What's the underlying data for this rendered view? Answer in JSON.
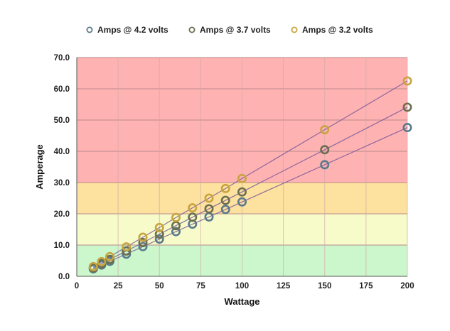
{
  "chart_data": {
    "type": "scatter",
    "title": "",
    "xlabel": "Wattage",
    "ylabel": "Amperage",
    "xlim": [
      0,
      200
    ],
    "ylim": [
      0,
      70
    ],
    "x_ticks": [
      "0",
      "25",
      "50",
      "75",
      "100",
      "125",
      "150",
      "175",
      "200"
    ],
    "y_ticks": [
      "0.0",
      "10.0",
      "20.0",
      "30.0",
      "40.0",
      "50.0",
      "60.0",
      "70.0"
    ],
    "grid": true,
    "legend_position": "top-center",
    "bands": [
      {
        "from": 0,
        "to": 10,
        "color": "#ccf7cc"
      },
      {
        "from": 10,
        "to": 20,
        "color": "#f7fbc9"
      },
      {
        "from": 20,
        "to": 30,
        "color": "#fde19e"
      },
      {
        "from": 30,
        "to": 70,
        "color": "#ffb2b2"
      }
    ],
    "x": [
      10,
      15,
      20,
      30,
      40,
      50,
      60,
      70,
      80,
      90,
      100,
      150,
      200
    ],
    "series": [
      {
        "name": "Amps @ 4.2 volts",
        "color": "#5a7a8c",
        "line_color": "#7a5a9a",
        "values": [
          2.4,
          3.6,
          4.8,
          7.1,
          9.5,
          11.9,
          14.3,
          16.7,
          19.0,
          21.4,
          23.8,
          35.7,
          47.6
        ]
      },
      {
        "name": "Amps @ 3.7 volts",
        "color": "#6b6f4e",
        "line_color": "#7a5a9a",
        "values": [
          2.7,
          4.1,
          5.4,
          8.1,
          10.8,
          13.5,
          16.2,
          18.9,
          21.6,
          24.3,
          27.0,
          40.5,
          54.1
        ]
      },
      {
        "name": "Amps @ 3.2 volts",
        "color": "#c9a43f",
        "line_color": "#7a5a9a",
        "values": [
          3.1,
          4.7,
          6.3,
          9.4,
          12.5,
          15.6,
          18.8,
          21.9,
          25.0,
          28.1,
          31.3,
          46.9,
          62.5
        ]
      }
    ]
  }
}
